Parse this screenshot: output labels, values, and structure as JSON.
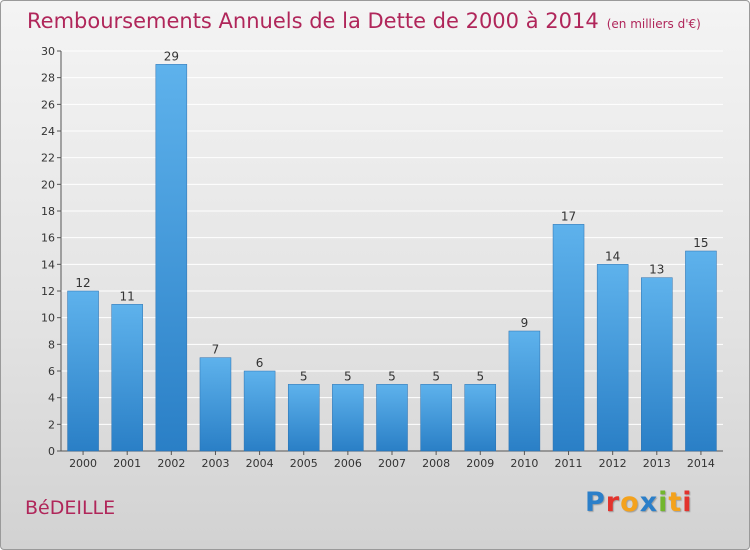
{
  "title": "Remboursements Annuels de la Dette de 2000 à 2014",
  "title_unit": "(en milliers d'€)",
  "commune": "BéDEILLE",
  "logo": {
    "text": "Proxiti",
    "letters": [
      {
        "ch": "P",
        "color": "#2b7fc9"
      },
      {
        "ch": "r",
        "color": "#e2332d"
      },
      {
        "ch": "o",
        "color": "#f4a21c"
      },
      {
        "ch": "x",
        "color": "#2b7fc9"
      },
      {
        "ch": "i",
        "color": "#72b62d"
      },
      {
        "ch": "t",
        "color": "#f4a21c"
      },
      {
        "ch": "i",
        "color": "#e2332d"
      }
    ]
  },
  "colors": {
    "title": "#b0265a",
    "bar_light": "#5eb2ec",
    "bar_dark": "#2a7fc6",
    "grid": "#ffffff",
    "axis": "#555555"
  },
  "chart_data": {
    "type": "bar",
    "categories": [
      "2000",
      "2001",
      "2002",
      "2003",
      "2004",
      "2005",
      "2006",
      "2007",
      "2008",
      "2009",
      "2010",
      "2011",
      "2012",
      "2013",
      "2014"
    ],
    "values": [
      12,
      11,
      29,
      7,
      6,
      5,
      5,
      5,
      5,
      5,
      9,
      17,
      14,
      13,
      15
    ],
    "ylim": [
      0,
      30
    ],
    "yticks": [
      0,
      2,
      4,
      6,
      8,
      10,
      12,
      14,
      16,
      18,
      20,
      22,
      24,
      26,
      28,
      30
    ],
    "grid": true,
    "data_labels": true
  }
}
